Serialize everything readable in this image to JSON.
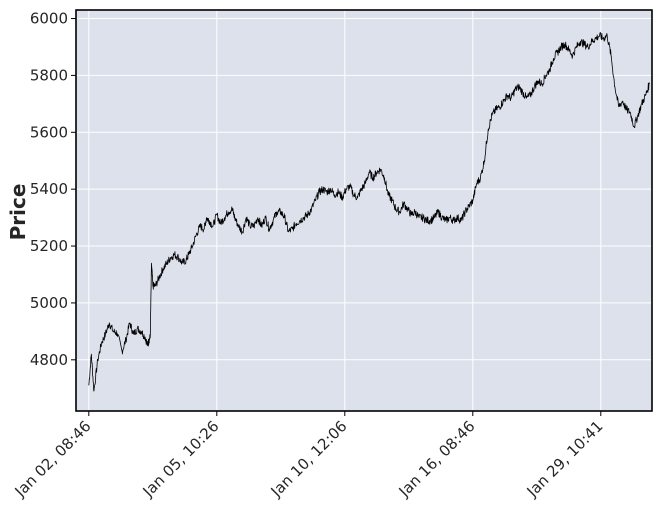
{
  "chart_data": {
    "type": "line",
    "chart_style": "ohlc-bars",
    "title": "",
    "xlabel": "",
    "ylabel": "Price",
    "ylim": [
      4620,
      6030
    ],
    "y_ticks": [
      4800,
      5000,
      5200,
      5400,
      5600,
      5800,
      6000
    ],
    "y_tick_labels": [
      "4800",
      "5000",
      "5200",
      "5400",
      "5600",
      "5800",
      "6000"
    ],
    "x_index_range": [
      -0.1,
      4.4
    ],
    "x_ticks": [
      0,
      1,
      2,
      3,
      4
    ],
    "x_tick_labels": [
      "Jan 02, 08:46",
      "Jan 05, 10:26",
      "Jan 10, 12:06",
      "Jan 16, 08:46",
      "Jan 29, 10:41"
    ],
    "grid": true,
    "legend": "none",
    "colors": {
      "plot_background": "#dce1ec",
      "grid": "#ffffff",
      "line": "#000000",
      "frame": "#000000",
      "text": "#262626"
    },
    "series": [
      {
        "values": [
          [
            0.0,
            4710
          ],
          [
            0.02,
            4820
          ],
          [
            0.04,
            4690
          ],
          [
            0.07,
            4800
          ],
          [
            0.1,
            4860
          ],
          [
            0.13,
            4890
          ],
          [
            0.16,
            4930
          ],
          [
            0.19,
            4900
          ],
          [
            0.22,
            4895
          ],
          [
            0.26,
            4830
          ],
          [
            0.29,
            4870
          ],
          [
            0.32,
            4930
          ],
          [
            0.35,
            4890
          ],
          [
            0.38,
            4910
          ],
          [
            0.41,
            4900
          ],
          [
            0.44,
            4880
          ],
          [
            0.46,
            4850
          ],
          [
            0.47,
            4870
          ],
          [
            0.48,
            4880
          ],
          [
            0.49,
            5140
          ],
          [
            0.5,
            5060
          ],
          [
            0.52,
            5060
          ],
          [
            0.55,
            5090
          ],
          [
            0.58,
            5120
          ],
          [
            0.61,
            5140
          ],
          [
            0.64,
            5160
          ],
          [
            0.67,
            5170
          ],
          [
            0.7,
            5160
          ],
          [
            0.73,
            5140
          ],
          [
            0.76,
            5150
          ],
          [
            0.78,
            5170
          ],
          [
            0.81,
            5200
          ],
          [
            0.84,
            5240
          ],
          [
            0.87,
            5270
          ],
          [
            0.9,
            5260
          ],
          [
            0.92,
            5300
          ],
          [
            0.94,
            5290
          ],
          [
            0.97,
            5270
          ],
          [
            1.0,
            5310
          ],
          [
            1.03,
            5280
          ],
          [
            1.06,
            5300
          ],
          [
            1.09,
            5320
          ],
          [
            1.12,
            5330
          ],
          [
            1.14,
            5300
          ],
          [
            1.17,
            5270
          ],
          [
            1.2,
            5250
          ],
          [
            1.23,
            5300
          ],
          [
            1.26,
            5270
          ],
          [
            1.29,
            5270
          ],
          [
            1.32,
            5300
          ],
          [
            1.35,
            5270
          ],
          [
            1.38,
            5300
          ],
          [
            1.41,
            5260
          ],
          [
            1.44,
            5290
          ],
          [
            1.47,
            5320
          ],
          [
            1.5,
            5320
          ],
          [
            1.53,
            5300
          ],
          [
            1.56,
            5250
          ],
          [
            1.59,
            5260
          ],
          [
            1.62,
            5280
          ],
          [
            1.65,
            5290
          ],
          [
            1.68,
            5300
          ],
          [
            1.71,
            5310
          ],
          [
            1.74,
            5330
          ],
          [
            1.77,
            5360
          ],
          [
            1.8,
            5390
          ],
          [
            1.83,
            5400
          ],
          [
            1.86,
            5390
          ],
          [
            1.89,
            5400
          ],
          [
            1.92,
            5380
          ],
          [
            1.95,
            5390
          ],
          [
            1.98,
            5370
          ],
          [
            2.01,
            5400
          ],
          [
            2.04,
            5410
          ],
          [
            2.07,
            5380
          ],
          [
            2.1,
            5370
          ],
          [
            2.13,
            5400
          ],
          [
            2.16,
            5420
          ],
          [
            2.19,
            5460
          ],
          [
            2.22,
            5440
          ],
          [
            2.25,
            5460
          ],
          [
            2.28,
            5470
          ],
          [
            2.31,
            5440
          ],
          [
            2.34,
            5380
          ],
          [
            2.37,
            5360
          ],
          [
            2.4,
            5330
          ],
          [
            2.43,
            5320
          ],
          [
            2.46,
            5350
          ],
          [
            2.49,
            5330
          ],
          [
            2.52,
            5310
          ],
          [
            2.55,
            5320
          ],
          [
            2.58,
            5300
          ],
          [
            2.61,
            5300
          ],
          [
            2.64,
            5290
          ],
          [
            2.67,
            5290
          ],
          [
            2.7,
            5300
          ],
          [
            2.73,
            5320
          ],
          [
            2.76,
            5300
          ],
          [
            2.79,
            5290
          ],
          [
            2.82,
            5300
          ],
          [
            2.85,
            5290
          ],
          [
            2.88,
            5300
          ],
          [
            2.91,
            5290
          ],
          [
            2.94,
            5320
          ],
          [
            2.97,
            5340
          ],
          [
            3.0,
            5360
          ],
          [
            3.03,
            5420
          ],
          [
            3.06,
            5440
          ],
          [
            3.09,
            5500
          ],
          [
            3.12,
            5610
          ],
          [
            3.15,
            5660
          ],
          [
            3.18,
            5680
          ],
          [
            3.21,
            5690
          ],
          [
            3.24,
            5710
          ],
          [
            3.27,
            5730
          ],
          [
            3.3,
            5720
          ],
          [
            3.33,
            5750
          ],
          [
            3.36,
            5760
          ],
          [
            3.39,
            5740
          ],
          [
            3.42,
            5720
          ],
          [
            3.45,
            5730
          ],
          [
            3.48,
            5760
          ],
          [
            3.51,
            5780
          ],
          [
            3.54,
            5770
          ],
          [
            3.57,
            5800
          ],
          [
            3.6,
            5820
          ],
          [
            3.63,
            5860
          ],
          [
            3.66,
            5880
          ],
          [
            3.69,
            5900
          ],
          [
            3.72,
            5910
          ],
          [
            3.75,
            5890
          ],
          [
            3.78,
            5870
          ],
          [
            3.81,
            5900
          ],
          [
            3.84,
            5920
          ],
          [
            3.87,
            5910
          ],
          [
            3.9,
            5900
          ],
          [
            3.93,
            5920
          ],
          [
            3.96,
            5930
          ],
          [
            3.99,
            5940
          ],
          [
            4.02,
            5930
          ],
          [
            4.05,
            5940
          ],
          [
            4.08,
            5870
          ],
          [
            4.11,
            5760
          ],
          [
            4.14,
            5690
          ],
          [
            4.17,
            5710
          ],
          [
            4.2,
            5680
          ],
          [
            4.23,
            5670
          ],
          [
            4.26,
            5620
          ],
          [
            4.29,
            5660
          ],
          [
            4.32,
            5700
          ],
          [
            4.35,
            5730
          ],
          [
            4.38,
            5770
          ]
        ]
      }
    ]
  }
}
